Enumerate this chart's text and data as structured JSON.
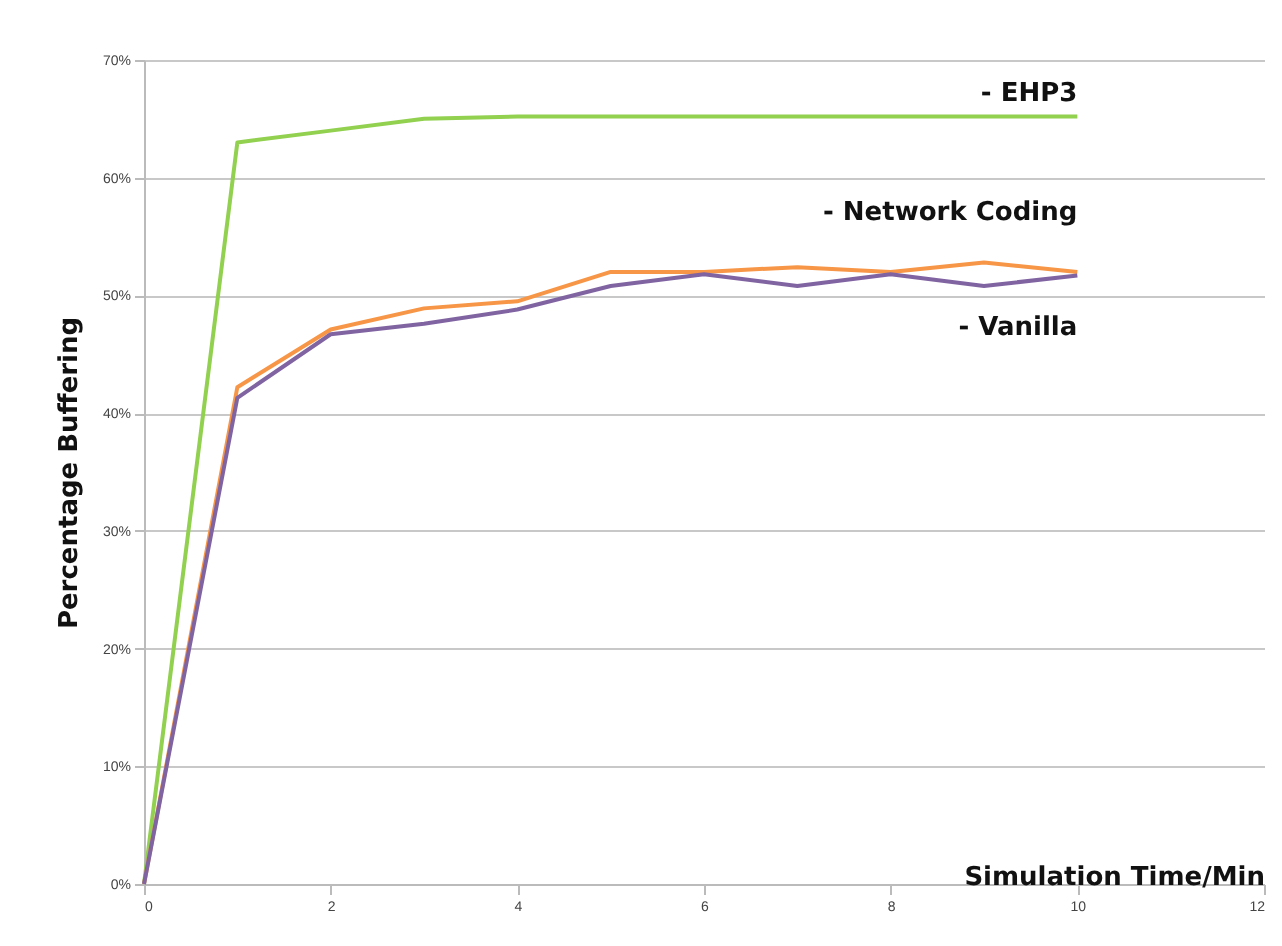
{
  "chart_data": {
    "type": "line",
    "xlabel": "Simulation Time/Min",
    "ylabel": "Percentage Buffering",
    "x": [
      0,
      1,
      2,
      3,
      4,
      5,
      6,
      7,
      8,
      9,
      10
    ],
    "series": [
      {
        "name": "- EHP3",
        "color": "#92d050",
        "values": [
          0,
          63,
          64,
          65,
          65.2,
          65.2,
          65.2,
          65.2,
          65.2,
          65.2,
          65.2
        ]
      },
      {
        "name": "- Network Coding",
        "color": "#f79646",
        "values": [
          0,
          42.2,
          47.1,
          48.9,
          49.5,
          52,
          52,
          52.4,
          52,
          52.8,
          52
        ]
      },
      {
        "name": "- Vanilla",
        "color": "#8064a2",
        "values": [
          0,
          41.3,
          46.7,
          47.6,
          48.8,
          50.8,
          51.8,
          50.8,
          51.8,
          50.8,
          51.7
        ]
      }
    ],
    "xlim": [
      0,
      12
    ],
    "xticks": [
      0,
      2,
      4,
      6,
      8,
      10,
      12
    ],
    "ylim": [
      0,
      70
    ],
    "yticks": [
      {
        "value": 0,
        "label": "0%"
      },
      {
        "value": 10,
        "label": "10%"
      },
      {
        "value": 20,
        "label": "20%"
      },
      {
        "value": 30,
        "label": "30%"
      },
      {
        "value": 40,
        "label": "40%"
      },
      {
        "value": 50,
        "label": "50%"
      },
      {
        "value": 60,
        "label": "60%"
      },
      {
        "value": 70,
        "label": "70%"
      }
    ],
    "grid": "y",
    "legend": false,
    "marker": "none",
    "line_style": "solid"
  }
}
